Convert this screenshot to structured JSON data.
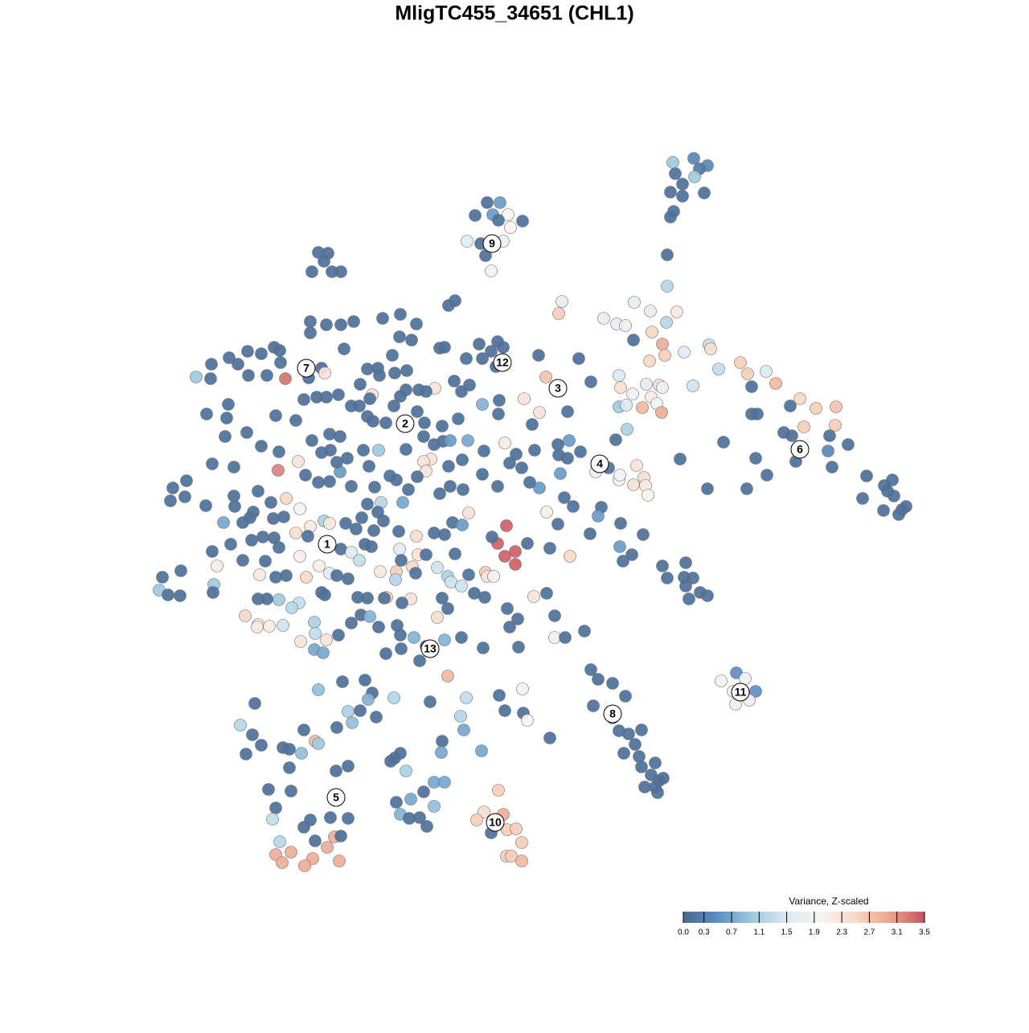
{
  "chart_data": {
    "type": "scatter",
    "title": "MligTC455_34651 (CHL1)",
    "xlim": [
      180,
      1140
    ],
    "ylim": [
      1090,
      180
    ],
    "x": [
      837,
      863,
      880,
      870,
      840,
      864,
      849,
      834,
      849,
      876,
      838,
      834,
      830,
      830,
      606,
      622,
      613,
      591,
      632,
      620,
      650,
      635,
      581,
      598,
      626,
      604,
      611,
      396,
      408,
      403,
      388,
      413,
      424,
      699,
      695,
      789,
      809,
      842,
      751,
      767,
      778,
      829,
      811,
      788,
      824,
      851,
      882,
      884,
      827,
      808,
      894,
      921,
      930,
      953,
      965,
      770,
      772,
      804,
      820,
      824,
      787,
      810,
      862,
      935,
      770,
      779,
      799,
      817,
      823,
      780,
      766,
      995,
      1015,
      1040,
      983,
      935,
      942,
      1039,
      1000,
      975,
      985,
      1032,
      1055,
      1030,
      900,
      846,
      940,
      990,
      1035,
      954,
      880,
      929,
      1078,
      1100,
      1110,
      1104,
      1073,
      1112,
      1127,
      1122,
      1099,
      1118,
      792,
      801,
      770,
      788,
      803,
      806,
      771,
      741,
      757,
      670,
      720,
      679,
      735,
      706,
      652,
      671,
      662,
      694,
      708,
      695,
      706,
      722,
      697,
      671,
      659,
      702,
      713,
      680,
      694,
      748,
      744,
      734,
      772,
      800,
      771,
      786,
      775,
      709,
      684,
      656,
      664,
      680,
      690,
      690,
      703,
      727,
      824,
      853,
      830,
      851,
      862,
      853,
      871,
      880,
      857,
      630,
      619,
      641,
      628,
      641,
      612,
      916,
      927,
      897,
      912,
      940,
      915,
      932,
      735,
      744,
      762,
      778,
      738,
      762,
      770,
      798,
      782,
      790,
      776,
      795,
      815,
      798,
      810,
      820,
      825,
      802,
      818,
      815,
      620,
      602,
      626,
      593,
      631,
      642,
      611,
      649,
      630,
      636,
      649,
      317,
      299,
      314,
      325,
      306,
      352,
      378,
      392,
      396,
      360,
      375,
      360,
      418,
      433,
      334,
      362,
      343,
      339,
      386,
      378,
      411,
      433,
      392,
      416,
      424,
      407,
      348,
      343,
      362,
      389,
      351,
      379,
      422,
      396,
      426,
      454,
      463,
      458,
      490,
      535,
      580,
      621,
      650,
      433,
      448,
      419,
      438,
      468,
      573,
      628,
      651,
      656,
      577,
      550,
      549,
      599,
      684,
      491,
      498,
      486,
      505,
      540,
      553,
      527,
      511,
      493,
      540,
      498,
      509,
      522,
      531,
      557,
      244,
      262,
      263,
      285,
      296,
      308,
      325,
      341,
      348,
      349,
      355,
      332,
      309,
      284,
      257,
      282,
      280,
      307,
      325,
      343,
      368,
      378,
      394,
      406,
      421,
      384,
      400,
      404,
      386,
      386,
      406,
      424,
      440,
      476,
      498,
      497,
      518,
      512,
      558,
      566,
      547,
      553,
      596,
      619,
      626,
      611,
      580,
      600,
      617,
      488,
      428,
      457,
      470,
      472,
      491,
      506,
      505,
      521,
      541,
      530,
      565,
      574,
      584,
      600,
      621,
      620,
      463,
      460,
      448,
      437,
      447,
      457,
      464,
      480,
      490,
      498,
      519,
      528,
      550,
      570,
      505,
      527,
      540,
      551,
      560,
      582,
      602,
      628,
      642,
      665,
      634,
      649,
      575,
      558,
      536,
      527,
      530,
      547,
      576,
      600,
      619,
      560,
      519,
      508,
      493,
      501,
      474,
      457,
      437,
      423,
      410,
      396,
      380,
      371,
      346,
      347,
      321,
      337,
      356,
      373,
      315,
      292,
      291,
      264,
      291,
      232,
      215,
      212,
      230,
      256,
      278,
      302,
      311,
      340,
      353,
      386,
      403,
      410,
      383,
      368,
      341,
      347,
      327,
      313,
      287,
      264,
      225,
      202,
      198,
      209,
      224,
      270,
      266,
      265,
      302,
      330,
      323,
      343,
      356,
      373,
      381,
      397,
      410,
      419,
      433,
      424,
      437,
      447,
      454,
      462,
      430,
      443,
      450,
      470,
      477,
      465,
      496,
      518,
      520,
      530,
      497,
      499,
      513,
      493,
      492,
      473,
      517,
      544,
      557,
      561,
      574,
      583,
      566,
      540,
      553,
      563,
      575,
      583,
      604,
      606,
      614,
      590,
      603,
      550,
      544,
      557,
      511,
      481,
      500,
      478,
      457,
      445,
      449,
      460,
      471,
      494,
      437,
      421,
      406,
      391,
      392,
      391,
      402,
      374,
      352,
      372,
      363,
      347,
      332,
      321,
      305,
      321,
      320,
      335,
      404,
      400,
      498,
      515,
      530,
      499,
      480,
      522,
      553,
      574,
      601,
      634,
      644,
      631,
      645,
      485,
      466,
      459,
      471,
      452,
      432,
      411,
      419,
      400,
      388,
      410,
      423
    ],
    "y": [
      202,
      197,
      206,
      210,
      216,
      220,
      229,
      239,
      244,
      240,
      263,
      270,
      317,
      356,
      252,
      252,
      267,
      268,
      267,
      274,
      275,
      283,
      300,
      303,
      300,
      318,
      337,
      314,
      315,
      325,
      338,
      338,
      338,
      375,
      390,
      376,
      387,
      388,
      396,
      403,
      405,
      401,
      413,
      423,
      428,
      438,
      429,
      434,
      442,
      449,
      459,
      451,
      465,
      462,
      477,
      467,
      482,
      478,
      479,
      482,
      490,
      494,
      480,
      481,
      506,
      504,
      507,
      502,
      513,
      534,
      547,
      496,
      508,
      506,
      505,
      515,
      515,
      529,
      531,
      538,
      542,
      542,
      553,
      561,
      550,
      571,
      570,
      574,
      581,
      591,
      608,
      608,
      592,
      604,
      597,
      611,
      620,
      617,
      630,
      634,
      635,
      640,
      579,
      594,
      597,
      603,
      604,
      616,
      591,
      587,
      582,
      442,
      446,
      469,
      475,
      512,
      496,
      513,
      528,
      553,
      548,
      566,
      570,
      562,
      589,
      607,
      600,
      619,
      630,
      637,
      652,
      631,
      642,
      664,
      651,
      665,
      680,
      690,
      698,
      692,
      682,
      676,
      742,
      738,
      766,
      793,
      793,
      785,
      704,
      700,
      719,
      718,
      719,
      729,
      737,
      741,
      745,
      654,
      676,
      686,
      692,
      702,
      668,
      837,
      844,
      847,
      860,
      860,
      876,
      871,
      833,
      845,
      850,
      866,
      878,
      893,
      909,
      908,
      913,
      926,
      937,
      941,
      949,
      954,
      964,
      971,
      968,
      979,
      986,
      979,
      983,
      1010,
      1013,
      1020,
      1032,
      1031,
      1036,
      1048,
      1065,
      1065,
      1071,
      875,
      902,
      914,
      927,
      938,
      930,
      908,
      922,
      925,
      932,
      937,
      955,
      959,
      953,
      982,
      984,
      1005,
      1019,
      1020,
      1029,
      1017,
      1018,
      1046,
      1041,
      1040,
      1054,
      1047,
      1063,
      1060,
      1068,
      1073,
      1077,
      1071,
      858,
      848,
      846,
      862,
      870,
      868,
      873,
      868,
      865,
      857,
      885,
      884,
      905,
      899,
      892,
      891,
      884,
      887,
      896,
      908,
      922,
      936,
      934,
      918,
      943,
      937,
      947,
      959,
      973,
      973,
      985,
      994,
      998,
      1003,
      1013,
      1018,
      1017,
      1028,
      841,
      469,
      471,
      453,
      445,
      453,
      437,
      440,
      432,
      436,
      451,
      471,
      467,
      467,
      503,
      515,
      520,
      543,
      538,
      555,
      517,
      523,
      497,
      494,
      494,
      491,
      470,
      458,
      464,
      414,
      400,
      404,
      404,
      400,
      396,
      391,
      419,
      403,
      423,
      380,
      374,
      433,
      432,
      428,
      425,
      432,
      437,
      446,
      446,
      456,
      442,
      434,
      459,
      458,
      467,
      464,
      461,
      485,
      485,
      483,
      487,
      474,
      487,
      479,
      503,
      498,
      515,
      491,
      496,
      478,
      505,
      505,
      518,
      524,
      526,
      505,
      493,
      512,
      526,
      530,
      521,
      559,
      543,
      553,
      549,
      548,
      548,
      561,
      551,
      565,
      560,
      576,
      582,
      572,
      580,
      571,
      574,
      586,
      614,
      609,
      590,
      605,
      605,
      593,
      609,
      597,
      625,
      625,
      627,
      605,
      587,
      599,
      600,
      591,
      574,
      585,
      562,
      611,
      625,
      620,
      633,
      637,
      630,
      617,
      577,
      581,
      598,
      607,
      623,
      618,
      629,
      650,
      650,
      644,
      645,
      643,
      655,
      648,
      651,
      667,
      663,
      669,
      681,
      668,
      672,
      677,
      686,
      710,
      718,
      734,
      740,
      741,
      704,
      727,
      737,
      697,
      698,
      715,
      718,
      716,
      692,
      718,
      704,
      713,
      716,
      720,
      683,
      687,
      697,
      677,
      680,
      651,
      658,
      644,
      637,
      648,
      660,
      661,
      667,
      690,
      690,
      683,
      697,
      705,
      711,
      721,
      711,
      713,
      706,
      717,
      724,
      729,
      715,
      689,
      663,
      665,
      650,
      653,
      638,
      712,
      717,
      717,
      738,
      743,
      744,
      768,
      757,
      745,
      743,
      750,
      744,
      744,
      743,
      765,
      767,
      780,
      778,
      775,
      790,
      796,
      774,
      788,
      808,
      812,
      798,
      778,
      750,
      756,
      746,
      745,
      745,
      766,
      777,
      780,
      779,
      740,
      737,
      790,
      793,
      804,
      807,
      813,
      822,
      796,
      793,
      806,
      780,
      770,
      757,
      805,
      592,
      606,
      580,
      560,
      560,
      570,
      560,
      575,
      563,
      548,
      540,
      543
    ],
    "values": [
      1.0,
      0.4,
      0.4,
      0.2,
      0.1,
      1.0,
      0.1,
      0.1,
      0.1,
      0.1,
      0.1,
      0.1,
      0.1,
      1.2,
      0.1,
      0.6,
      0.6,
      0.1,
      2.0,
      0.1,
      0.1,
      2.0,
      1.6,
      0.1,
      1.8,
      0.1,
      1.9,
      0.1,
      0.1,
      0.1,
      0.1,
      0.1,
      0.1,
      1.7,
      2.6,
      1.7,
      1.7,
      2.2,
      1.7,
      1.7,
      1.8,
      1.2,
      2.5,
      0.1,
      2.9,
      1.6,
      1.3,
      2.4,
      2.6,
      2.5,
      1.3,
      2.6,
      2.6,
      1.5,
      2.8,
      1.5,
      2.4,
      1.6,
      2.4,
      1.8,
      1.8,
      2.1,
      1.4,
      0.1,
      1.0,
      1.5,
      2.8,
      1.9,
      2.9,
      1.1,
      0.1,
      2.5,
      2.6,
      2.7,
      0.1,
      0.1,
      0.1,
      2.6,
      2.6,
      0.1,
      0.1,
      0.1,
      0.1,
      0.4,
      0.1,
      0.1,
      0.1,
      0.1,
      0.1,
      0.1,
      0.1,
      0.1,
      0.1,
      0.1,
      0.1,
      0.1,
      0.1,
      0.1,
      0.1,
      0.1,
      0.1,
      0.1,
      2.3,
      2.4,
      2.0,
      2.4,
      2.2,
      2.0,
      1.9,
      1.8,
      0.1,
      0.1,
      0.1,
      2.7,
      0.1,
      0.1,
      2.3,
      2.3,
      0.1,
      0.1,
      0.6,
      0.1,
      0.1,
      0.1,
      0.6,
      0.6,
      0.1,
      0.1,
      0.1,
      2.1,
      0.1,
      0.1,
      0.6,
      0.1,
      0.1,
      0.1,
      0.6,
      0.1,
      0.1,
      2.5,
      0.1,
      0.1,
      2.3,
      0.1,
      0.1,
      2.1,
      0.1,
      0.1,
      0.1,
      0.1,
      0.1,
      0.1,
      0.1,
      0.1,
      0.1,
      0.1,
      0.1,
      3.4,
      3.4,
      3.4,
      3.4,
      3.4,
      0.1,
      0.5,
      1.8,
      1.9,
      1.8,
      0.5,
      1.8,
      1.8,
      0.1,
      0.1,
      0.1,
      0.1,
      0.1,
      0.1,
      0.1,
      0.1,
      0.1,
      0.1,
      0.1,
      0.1,
      0.1,
      0.1,
      0.1,
      0.1,
      0.1,
      0.1,
      0.1,
      0.1,
      2.6,
      2.4,
      2.9,
      2.6,
      2.6,
      2.6,
      0.1,
      2.6,
      2.6,
      2.6,
      2.8,
      0.1,
      1.2,
      0.1,
      0.1,
      0.1,
      0.1,
      0.1,
      2.8,
      1.0,
      0.1,
      0.9,
      0.1,
      0.1,
      0.1,
      0.1,
      0.1,
      0.1,
      1.3,
      0.1,
      0.1,
      0.1,
      0.1,
      0.1,
      2.9,
      0.1,
      2.9,
      1.2,
      2.9,
      2.9,
      2.9,
      2.9,
      2.9,
      2.9,
      0.9,
      0.1,
      0.1,
      0.1,
      0.8,
      1.2,
      0.1,
      1.3,
      0.1,
      1.9,
      1.1,
      0.1,
      0.1,
      0.9,
      0.1,
      1.2,
      0.1,
      0.1,
      2.0,
      0.7,
      0.1,
      0.7,
      0.7,
      0.1,
      0.1,
      0.1,
      0.1,
      1.1,
      0.7,
      0.7,
      0.1,
      0.7,
      0.1,
      0.9,
      0.8,
      0.1,
      0.1,
      0.1,
      2.8,
      1.0,
      0.1,
      0.1,
      0.1,
      0.1,
      0.1,
      0.1,
      0.1,
      0.1,
      0.1,
      3.3,
      0.1,
      0.1,
      0.1,
      0.1,
      0.1,
      0.1,
      0.1,
      0.1,
      0.1,
      0.1,
      0.1,
      0.1,
      0.1,
      0.1,
      0.1,
      0.1,
      2.3,
      0.1,
      0.1,
      0.1,
      0.1,
      0.1,
      0.1,
      0.1,
      0.1,
      0.1,
      0.1,
      0.1,
      0.1,
      0.1,
      0.1,
      0.1,
      0.1,
      0.1,
      0.1,
      0.1,
      0.1,
      0.1,
      0.1,
      0.1,
      0.1,
      0.1,
      0.1,
      0.1,
      0.1,
      0.1,
      0.1,
      2.3,
      0.1,
      0.1,
      0.1,
      0.1,
      0.8,
      0.1,
      0.1,
      2.4,
      0.1,
      0.1,
      0.1,
      0.1,
      0.1,
      0.1,
      0.1,
      0.1,
      0.1,
      0.1,
      0.1,
      0.1,
      0.1,
      0.1,
      0.1,
      0.1,
      0.1,
      0.6,
      0.7,
      0.1,
      2.2,
      0.1,
      0.1,
      0.1,
      0.1,
      0.1,
      0.1,
      2.3,
      2.3,
      2.3,
      0.1,
      0.1,
      0.1,
      0.1,
      0.1,
      0.1,
      0.1,
      0.1,
      0.7,
      1.2,
      0.1,
      0.1,
      0.6,
      0.1,
      0.1,
      0.1,
      2.3,
      3.2,
      0.1,
      0.1,
      0.1,
      2.5,
      2.0,
      0.1,
      0.1,
      0.1,
      0.1,
      0.1,
      0.1,
      0.1,
      0.1,
      0.1,
      0.1,
      0.7,
      0.1,
      0.1,
      0.1,
      0.1,
      2.2,
      1.1,
      2.2,
      0.1,
      2.4,
      0.1,
      0.1,
      0.1,
      0.1,
      0.1,
      0.1,
      0.1,
      0.1,
      1.0,
      0.1,
      0.1,
      2.1,
      1.0,
      0.1,
      0.1,
      0.1,
      2.2,
      0.1,
      0.1,
      2.1,
      2.5,
      2.1,
      1.6,
      0.1,
      0.1,
      0.1,
      1.6,
      1.3,
      0.1,
      0.1,
      0.1,
      0.1,
      0.1,
      0.1,
      0.1,
      0.1,
      0.1,
      2.4,
      2.3,
      0.1,
      1.6,
      0.1,
      2.5,
      2.6,
      1.2,
      2.2,
      0.1,
      1.4,
      1.1,
      1.4,
      1.4,
      0.1,
      0.1,
      0.1,
      0.1,
      0.1,
      0.6,
      2.3,
      2.6,
      2.3,
      1.9,
      0.1,
      0.1,
      0.1,
      2.4,
      0.1,
      2.3,
      2.6,
      0.1,
      0.1,
      0.1,
      0.1,
      0.1,
      0.8,
      0.1,
      0.1,
      0.1,
      0.1,
      2.3,
      1.1,
      1.3,
      0.7,
      0.7,
      2.3,
      1.4,
      1.3,
      1.2,
      1.0,
      0.1,
      0.1,
      2.5,
      2.2,
      2.2,
      2.2,
      0.1,
      0.1,
      0.1,
      0.8,
      0.1,
      0.1,
      0.1,
      0.1,
      0.8,
      0.1,
      0.1,
      0.1,
      0.1,
      0.1,
      0.1,
      0.1,
      0.1,
      0.1,
      1.0,
      0.1,
      0.1,
      0.1,
      0.1,
      0.1,
      0.1,
      0.1,
      0.1
    ],
    "annotations": [
      {
        "text": "1",
        "x": 407,
        "y": 677
      },
      {
        "text": "2",
        "x": 504,
        "y": 527
      },
      {
        "text": "3",
        "x": 694,
        "y": 483
      },
      {
        "text": "4",
        "x": 746,
        "y": 577
      },
      {
        "text": "5",
        "x": 418,
        "y": 992
      },
      {
        "text": "6",
        "x": 995,
        "y": 559
      },
      {
        "text": "7",
        "x": 381,
        "y": 458
      },
      {
        "text": "8",
        "x": 762,
        "y": 888
      },
      {
        "text": "9",
        "x": 612,
        "y": 303
      },
      {
        "text": "10",
        "x": 616,
        "y": 1023
      },
      {
        "text": "11",
        "x": 921,
        "y": 861
      },
      {
        "text": "12",
        "x": 625,
        "y": 451
      },
      {
        "text": "13",
        "x": 535,
        "y": 807
      }
    ],
    "colorbar": {
      "title": "Variance, Z-scaled",
      "clim": [
        0,
        3.5
      ],
      "ticks": [
        {
          "value": 0,
          "label": "0.0"
        },
        0.3,
        0.7,
        1.1,
        1.5,
        1.9,
        2.3,
        2.7,
        3.1,
        3.5
      ],
      "colors": [
        "#4a6a8f",
        "#5b8fc4",
        "#9ecae1",
        "#dbe9f2",
        "#f7f4f2",
        "#f9d8c6",
        "#eca48a",
        "#c4525f"
      ]
    }
  }
}
